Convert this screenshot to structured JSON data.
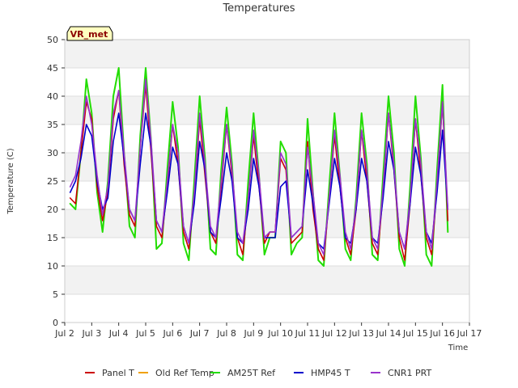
{
  "chart_data": {
    "type": "line",
    "title": "Temperatures",
    "xlabel": "Time",
    "ylabel": "Temperature (C)",
    "badge": "VR_met",
    "ylim": [
      0,
      50
    ],
    "xlim": [
      2,
      17
    ],
    "yticks": [
      0,
      5,
      10,
      15,
      20,
      25,
      30,
      35,
      40,
      45,
      50
    ],
    "xticks": [
      {
        "v": 2,
        "label": "Jul 2"
      },
      {
        "v": 3,
        "label": "Jul 3"
      },
      {
        "v": 4,
        "label": "Jul 4"
      },
      {
        "v": 5,
        "label": "Jul 5"
      },
      {
        "v": 6,
        "label": "Jul 6"
      },
      {
        "v": 7,
        "label": "Jul 7"
      },
      {
        "v": 8,
        "label": "Jul 8"
      },
      {
        "v": 9,
        "label": "Jul 9"
      },
      {
        "v": 10,
        "label": "Jul 10"
      },
      {
        "v": 11,
        "label": "Jul 11"
      },
      {
        "v": 12,
        "label": "Jul 12"
      },
      {
        "v": 13,
        "label": "Jul 13"
      },
      {
        "v": 14,
        "label": "Jul 14"
      },
      {
        "v": 15,
        "label": "Jul 15"
      },
      {
        "v": 16,
        "label": "Jul 16"
      },
      {
        "v": 17,
        "label": "Jul 17"
      }
    ],
    "grid": true,
    "legend_position": "bottom",
    "series": [
      {
        "name": "Panel T",
        "color": "#cc0000",
        "x": [
          2.2,
          2.4,
          2.6,
          2.8,
          3.0,
          3.2,
          3.4,
          3.6,
          3.8,
          4.0,
          4.2,
          4.4,
          4.6,
          4.8,
          5.0,
          5.2,
          5.4,
          5.6,
          5.8,
          6.0,
          6.2,
          6.4,
          6.6,
          6.8,
          7.0,
          7.2,
          7.4,
          7.6,
          7.8,
          8.0,
          8.2,
          8.4,
          8.6,
          8.8,
          9.0,
          9.2,
          9.4,
          9.6,
          9.8,
          10.0,
          10.2,
          10.4,
          10.6,
          10.8,
          11.0,
          11.2,
          11.4,
          11.6,
          11.8,
          12.0,
          12.2,
          12.4,
          12.6,
          12.8,
          13.0,
          13.2,
          13.4,
          13.6,
          13.8,
          14.0,
          14.2,
          14.4,
          14.6,
          14.8,
          15.0,
          15.2,
          15.4,
          15.6,
          15.8,
          16.0,
          16.2
        ],
        "y": [
          22,
          21,
          30,
          39,
          36,
          24,
          18,
          23,
          36,
          41,
          28,
          19,
          17,
          31,
          42,
          30,
          17,
          15,
          24,
          35,
          28,
          16,
          13,
          22,
          36,
          26,
          16,
          14,
          24,
          35,
          26,
          15,
          12,
          22,
          33,
          24,
          14,
          16,
          16,
          29,
          27,
          14,
          15,
          16,
          32,
          20,
          13,
          11,
          22,
          33,
          24,
          15,
          12,
          20,
          34,
          25,
          14,
          12,
          23,
          37,
          27,
          15,
          11,
          21,
          36,
          26,
          15,
          12,
          24,
          39,
          18
        ]
      },
      {
        "name": "Old Ref Temp",
        "color": "#f0a000",
        "x": [],
        "y": []
      },
      {
        "name": "AM25T Ref",
        "color": "#22dd00",
        "x": [
          2.2,
          2.4,
          2.6,
          2.8,
          3.0,
          3.2,
          3.4,
          3.6,
          3.8,
          4.0,
          4.2,
          4.4,
          4.6,
          4.8,
          5.0,
          5.2,
          5.4,
          5.6,
          5.8,
          6.0,
          6.2,
          6.4,
          6.6,
          6.8,
          7.0,
          7.2,
          7.4,
          7.6,
          7.8,
          8.0,
          8.2,
          8.4,
          8.6,
          8.8,
          9.0,
          9.2,
          9.4,
          9.6,
          9.8,
          10.0,
          10.2,
          10.4,
          10.6,
          10.8,
          11.0,
          11.2,
          11.4,
          11.6,
          11.8,
          12.0,
          12.2,
          12.4,
          12.6,
          12.8,
          13.0,
          13.2,
          13.4,
          13.6,
          13.8,
          14.0,
          14.2,
          14.4,
          14.6,
          14.8,
          15.0,
          15.2,
          15.4,
          15.6,
          15.8,
          16.0,
          16.2
        ],
        "y": [
          21,
          20,
          30,
          43,
          37,
          23,
          16,
          25,
          40,
          45,
          30,
          17,
          15,
          33,
          45,
          32,
          13,
          14,
          27,
          39,
          31,
          14,
          11,
          25,
          40,
          29,
          13,
          12,
          27,
          38,
          28,
          12,
          11,
          25,
          37,
          26,
          12,
          15,
          15,
          32,
          30,
          12,
          14,
          15,
          36,
          23,
          11,
          10,
          24,
          37,
          26,
          13,
          11,
          22,
          37,
          28,
          12,
          11,
          26,
          40,
          30,
          13,
          10,
          24,
          40,
          29,
          12,
          10,
          27,
          42,
          16
        ]
      },
      {
        "name": "HMP45 T",
        "color": "#0000cc",
        "x": [
          2.2,
          2.4,
          2.6,
          2.8,
          3.0,
          3.2,
          3.4,
          3.6,
          3.8,
          4.0,
          4.2,
          4.4,
          4.6,
          4.8,
          5.0,
          5.2,
          5.4,
          5.6,
          5.8,
          6.0,
          6.2,
          6.4,
          6.6,
          6.8,
          7.0,
          7.2,
          7.4,
          7.6,
          7.8,
          8.0,
          8.2,
          8.4,
          8.6,
          8.8,
          9.0,
          9.2,
          9.4,
          9.6,
          9.8,
          10.0,
          10.2,
          10.4,
          10.6,
          10.8,
          11.0,
          11.2,
          11.4,
          11.6,
          11.8,
          12.0,
          12.2,
          12.4,
          12.6,
          12.8,
          13.0,
          13.2,
          13.4,
          13.6,
          13.8,
          14.0,
          14.2,
          14.4,
          14.6,
          14.8,
          15.0,
          15.2,
          15.4,
          15.6,
          15.8,
          16.0,
          16.2
        ],
        "y": [
          23,
          25,
          29,
          35,
          33,
          25,
          20,
          22,
          32,
          37,
          29,
          20,
          18,
          28,
          37,
          31,
          18,
          16,
          23,
          31,
          28,
          17,
          14,
          21,
          32,
          27,
          16,
          15,
          22,
          30,
          25,
          15,
          14,
          20,
          29,
          24,
          15,
          15,
          15,
          24,
          25,
          15,
          16,
          17,
          27,
          21,
          14,
          13,
          21,
          29,
          24,
          15,
          14,
          20,
          29,
          25,
          15,
          14,
          22,
          32,
          27,
          16,
          13,
          21,
          31,
          26,
          16,
          14,
          23,
          34,
          20
        ]
      },
      {
        "name": "CNR1 PRT",
        "color": "#9933cc",
        "x": [
          2.2,
          2.4,
          2.6,
          2.8,
          3.0,
          3.2,
          3.4,
          3.6,
          3.8,
          4.0,
          4.2,
          4.4,
          4.6,
          4.8,
          5.0,
          5.2,
          5.4,
          5.6,
          5.8,
          6.0,
          6.2,
          6.4,
          6.6,
          6.8,
          7.0,
          7.2,
          7.4,
          7.6,
          7.8,
          8.0,
          8.2,
          8.4,
          8.6,
          8.8,
          9.0,
          9.2,
          9.4,
          9.6,
          9.8,
          10.0,
          10.2,
          10.4,
          10.6,
          10.8,
          11.0,
          11.2,
          11.4,
          11.6,
          11.8,
          12.0,
          12.2,
          12.4,
          12.6,
          12.8,
          13.0,
          13.2,
          13.4,
          13.6,
          13.8,
          14.0,
          14.2,
          14.4,
          14.6,
          14.8,
          15.0,
          15.2,
          15.4,
          15.6,
          15.8,
          16.0,
          16.2
        ],
        "y": [
          24,
          26,
          32,
          40,
          35,
          26,
          19,
          24,
          37,
          41,
          30,
          20,
          18,
          31,
          43,
          32,
          18,
          16,
          25,
          35,
          30,
          17,
          14,
          23,
          37,
          28,
          17,
          15,
          25,
          35,
          27,
          16,
          14,
          22,
          34,
          26,
          15,
          16,
          16,
          30,
          28,
          15,
          16,
          17,
          31,
          23,
          14,
          12,
          22,
          34,
          26,
          16,
          13,
          21,
          34,
          27,
          15,
          13,
          24,
          37,
          28,
          16,
          13,
          22,
          36,
          28,
          16,
          13,
          25,
          39,
          20
        ]
      }
    ]
  }
}
